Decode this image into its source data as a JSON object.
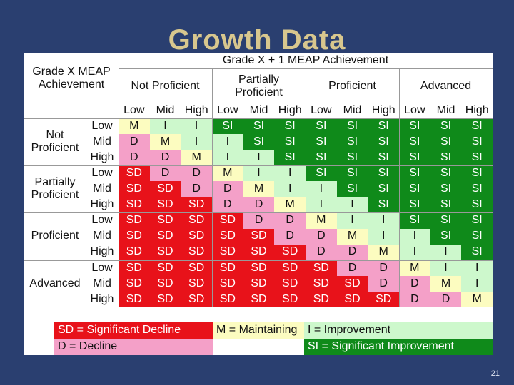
{
  "slide": {
    "title": "Growth Data",
    "page_number": "21"
  },
  "table": {
    "corner_label": "Grade X MEAP\nAchievement",
    "top_header": "Grade X + 1 MEAP Achievement",
    "col_groups": [
      "Not Proficient",
      "Partially\nProficient",
      "Proficient",
      "Advanced"
    ],
    "row_groups": [
      "Not\nProficient",
      "Partially\nProficient",
      "Proficient",
      "Advanced"
    ],
    "levels": [
      "Low",
      "Mid",
      "High"
    ],
    "colors": {
      "SD": "#e8121a",
      "D": "#f4a0c8",
      "M": "#fcfcc0",
      "I": "#cdf8cc",
      "SI": "#0f8a1a"
    },
    "rows": [
      [
        "M",
        "I",
        "I",
        "SI",
        "SI",
        "SI",
        "SI",
        "SI",
        "SI",
        "SI",
        "SI",
        "SI"
      ],
      [
        "D",
        "M",
        "I",
        "I",
        "SI",
        "SI",
        "SI",
        "SI",
        "SI",
        "SI",
        "SI",
        "SI"
      ],
      [
        "D",
        "D",
        "M",
        "I",
        "I",
        "SI",
        "SI",
        "SI",
        "SI",
        "SI",
        "SI",
        "SI"
      ],
      [
        "SD",
        "D",
        "D",
        "M",
        "I",
        "I",
        "SI",
        "SI",
        "SI",
        "SI",
        "SI",
        "SI"
      ],
      [
        "SD",
        "SD",
        "D",
        "D",
        "M",
        "I",
        "I",
        "SI",
        "SI",
        "SI",
        "SI",
        "SI"
      ],
      [
        "SD",
        "SD",
        "SD",
        "D",
        "D",
        "M",
        "I",
        "I",
        "SI",
        "SI",
        "SI",
        "SI"
      ],
      [
        "SD",
        "SD",
        "SD",
        "SD",
        "D",
        "D",
        "M",
        "I",
        "I",
        "SI",
        "SI",
        "SI"
      ],
      [
        "SD",
        "SD",
        "SD",
        "SD",
        "SD",
        "D",
        "D",
        "M",
        "I",
        "I",
        "SI",
        "SI"
      ],
      [
        "SD",
        "SD",
        "SD",
        "SD",
        "SD",
        "SD",
        "D",
        "D",
        "M",
        "I",
        "I",
        "SI"
      ],
      [
        "SD",
        "SD",
        "SD",
        "SD",
        "SD",
        "SD",
        "SD",
        "D",
        "D",
        "M",
        "I",
        "I"
      ],
      [
        "SD",
        "SD",
        "SD",
        "SD",
        "SD",
        "SD",
        "SD",
        "SD",
        "D",
        "D",
        "M",
        "I"
      ],
      [
        "SD",
        "SD",
        "SD",
        "SD",
        "SD",
        "SD",
        "SD",
        "SD",
        "SD",
        "D",
        "D",
        "M"
      ]
    ]
  },
  "legend": {
    "sd": "SD = Significant Decline",
    "m": "M = Maintaining",
    "i": "I = Improvement",
    "d": "D = Decline",
    "si": "SI = Significant Improvement"
  }
}
